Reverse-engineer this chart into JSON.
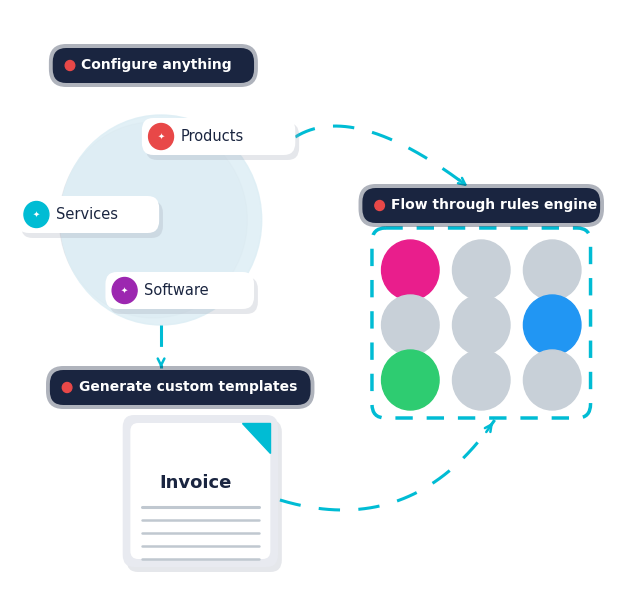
{
  "bg_color": "#ffffff",
  "labels": {
    "configure": "Configure anything",
    "rules": "Flow through rules engine",
    "templates": "Generate custom templates"
  },
  "item_colors": {
    "Products": "#e84848",
    "Services": "#00bcd4",
    "Software": "#9c27b0"
  },
  "grid_colors": {
    "pink": "#e91e8c",
    "blue": "#2196f3",
    "green": "#2ecc71",
    "gray": "#c8d0d8"
  },
  "arrow_color": "#00bcd4",
  "label_bg": "#1a2540",
  "label_text": "#ffffff",
  "dot_color": "#e84848",
  "circle_fill": "#ddeef5",
  "card_bg": "#ffffff",
  "card_shadow": "#b0b8c8",
  "invoice_line_color": "#c0c8d0",
  "grid_border_color": "#00bcd4",
  "invoice_bg": "#e8eaf0",
  "invoice_corner": "#00bcd4",
  "shadow_color": "#9aa0b0"
}
